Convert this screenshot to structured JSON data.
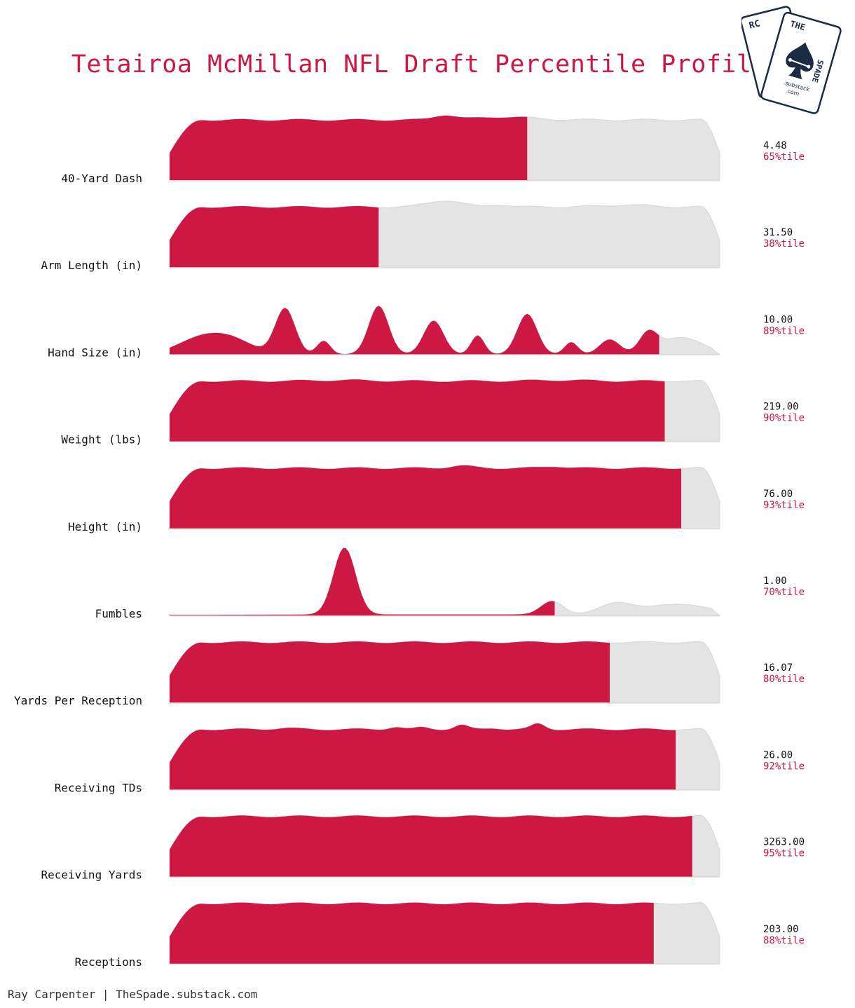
{
  "chart_data": {
    "type": "area",
    "title": "Tetairoa McMillan NFL Draft Percentile Profile",
    "highlight_color": "#cc1843",
    "background_color": "#e4e4e4",
    "metrics": [
      {
        "label": "40-Yard Dash",
        "value": "4.48",
        "percentile": 65,
        "percentile_text": "65%tile",
        "shape": "flat",
        "bumps": [
          [
            0.5,
            0.02,
            0.16
          ],
          [
            0.61,
            0.05,
            0.1
          ]
        ]
      },
      {
        "label": "Arm Length (in)",
        "value": "31.50",
        "percentile": 38,
        "percentile_text": "38%tile",
        "shape": "flat",
        "bumps": [
          [
            0.5,
            0.03,
            0.22
          ],
          [
            0.6,
            0.018,
            0.08
          ],
          [
            0.83,
            0.04,
            0.07
          ]
        ]
      },
      {
        "label": "Hand Size (in)",
        "value": "10.00",
        "percentile": 89,
        "percentile_text": "89%tile",
        "shape": "spiky",
        "bumps": [
          [
            0.05,
            0.04,
            0.2
          ],
          [
            0.11,
            0.04,
            0.22
          ],
          [
            0.21,
            0.018,
            0.68
          ],
          [
            0.28,
            0.012,
            0.2
          ],
          [
            0.38,
            0.018,
            0.72
          ],
          [
            0.48,
            0.018,
            0.5
          ],
          [
            0.56,
            0.012,
            0.28
          ],
          [
            0.65,
            0.018,
            0.6
          ],
          [
            0.73,
            0.012,
            0.18
          ],
          [
            0.8,
            0.018,
            0.22
          ],
          [
            0.87,
            0.016,
            0.28
          ],
          [
            0.93,
            0.04,
            0.25
          ]
        ]
      },
      {
        "label": "Weight (lbs)",
        "value": "219.00",
        "percentile": 90,
        "percentile_text": "90%tile",
        "shape": "flat",
        "bumps": [
          [
            0.31,
            0.05,
            0.03
          ],
          [
            0.71,
            0.05,
            0.03
          ]
        ]
      },
      {
        "label": "Height (in)",
        "value": "76.00",
        "percentile": 93,
        "percentile_text": "93%tile",
        "shape": "flat",
        "bumps": [
          [
            0.53,
            0.02,
            0.08
          ],
          [
            0.7,
            0.02,
            0.06
          ]
        ]
      },
      {
        "label": "Fumbles",
        "value": "1.00",
        "percentile": 70,
        "percentile_text": "70%tile",
        "shape": "spiky",
        "bumps": [
          [
            0.318,
            0.02,
            1.0
          ],
          [
            0.695,
            0.02,
            0.2
          ],
          [
            0.81,
            0.03,
            0.16
          ],
          [
            0.9,
            0.05,
            0.11
          ],
          [
            0.96,
            0.05,
            0.08
          ],
          [
            0.5,
            0.4,
            0.015
          ]
        ]
      },
      {
        "label": "Yards Per Reception",
        "value": "16.07",
        "percentile": 80,
        "percentile_text": "80%tile",
        "shape": "flat",
        "bumps": []
      },
      {
        "label": "Receiving TDs",
        "value": "26.00",
        "percentile": 92,
        "percentile_text": "92%tile",
        "shape": "flat",
        "bumps": [
          [
            0.21,
            0.02,
            0.04
          ],
          [
            0.41,
            0.012,
            0.08
          ],
          [
            0.46,
            0.012,
            0.06
          ],
          [
            0.53,
            0.012,
            0.14
          ],
          [
            0.59,
            0.012,
            0.04
          ],
          [
            0.67,
            0.012,
            0.18
          ]
        ]
      },
      {
        "label": "Receiving Yards",
        "value": "3263.00",
        "percentile": 95,
        "percentile_text": "95%tile",
        "shape": "flat",
        "bumps": []
      },
      {
        "label": "Receptions",
        "value": "203.00",
        "percentile": 88,
        "percentile_text": "88%tile",
        "shape": "flat",
        "bumps": []
      }
    ]
  },
  "footer": "Ray Carpenter | TheSpade.substack.com",
  "logo": {
    "back_card_text": "RC",
    "front_card_top": "THE",
    "front_card_side": "SPADE",
    "card_sub": ".substack",
    "card_sub2": ".com",
    "icon": "spade-icon"
  }
}
